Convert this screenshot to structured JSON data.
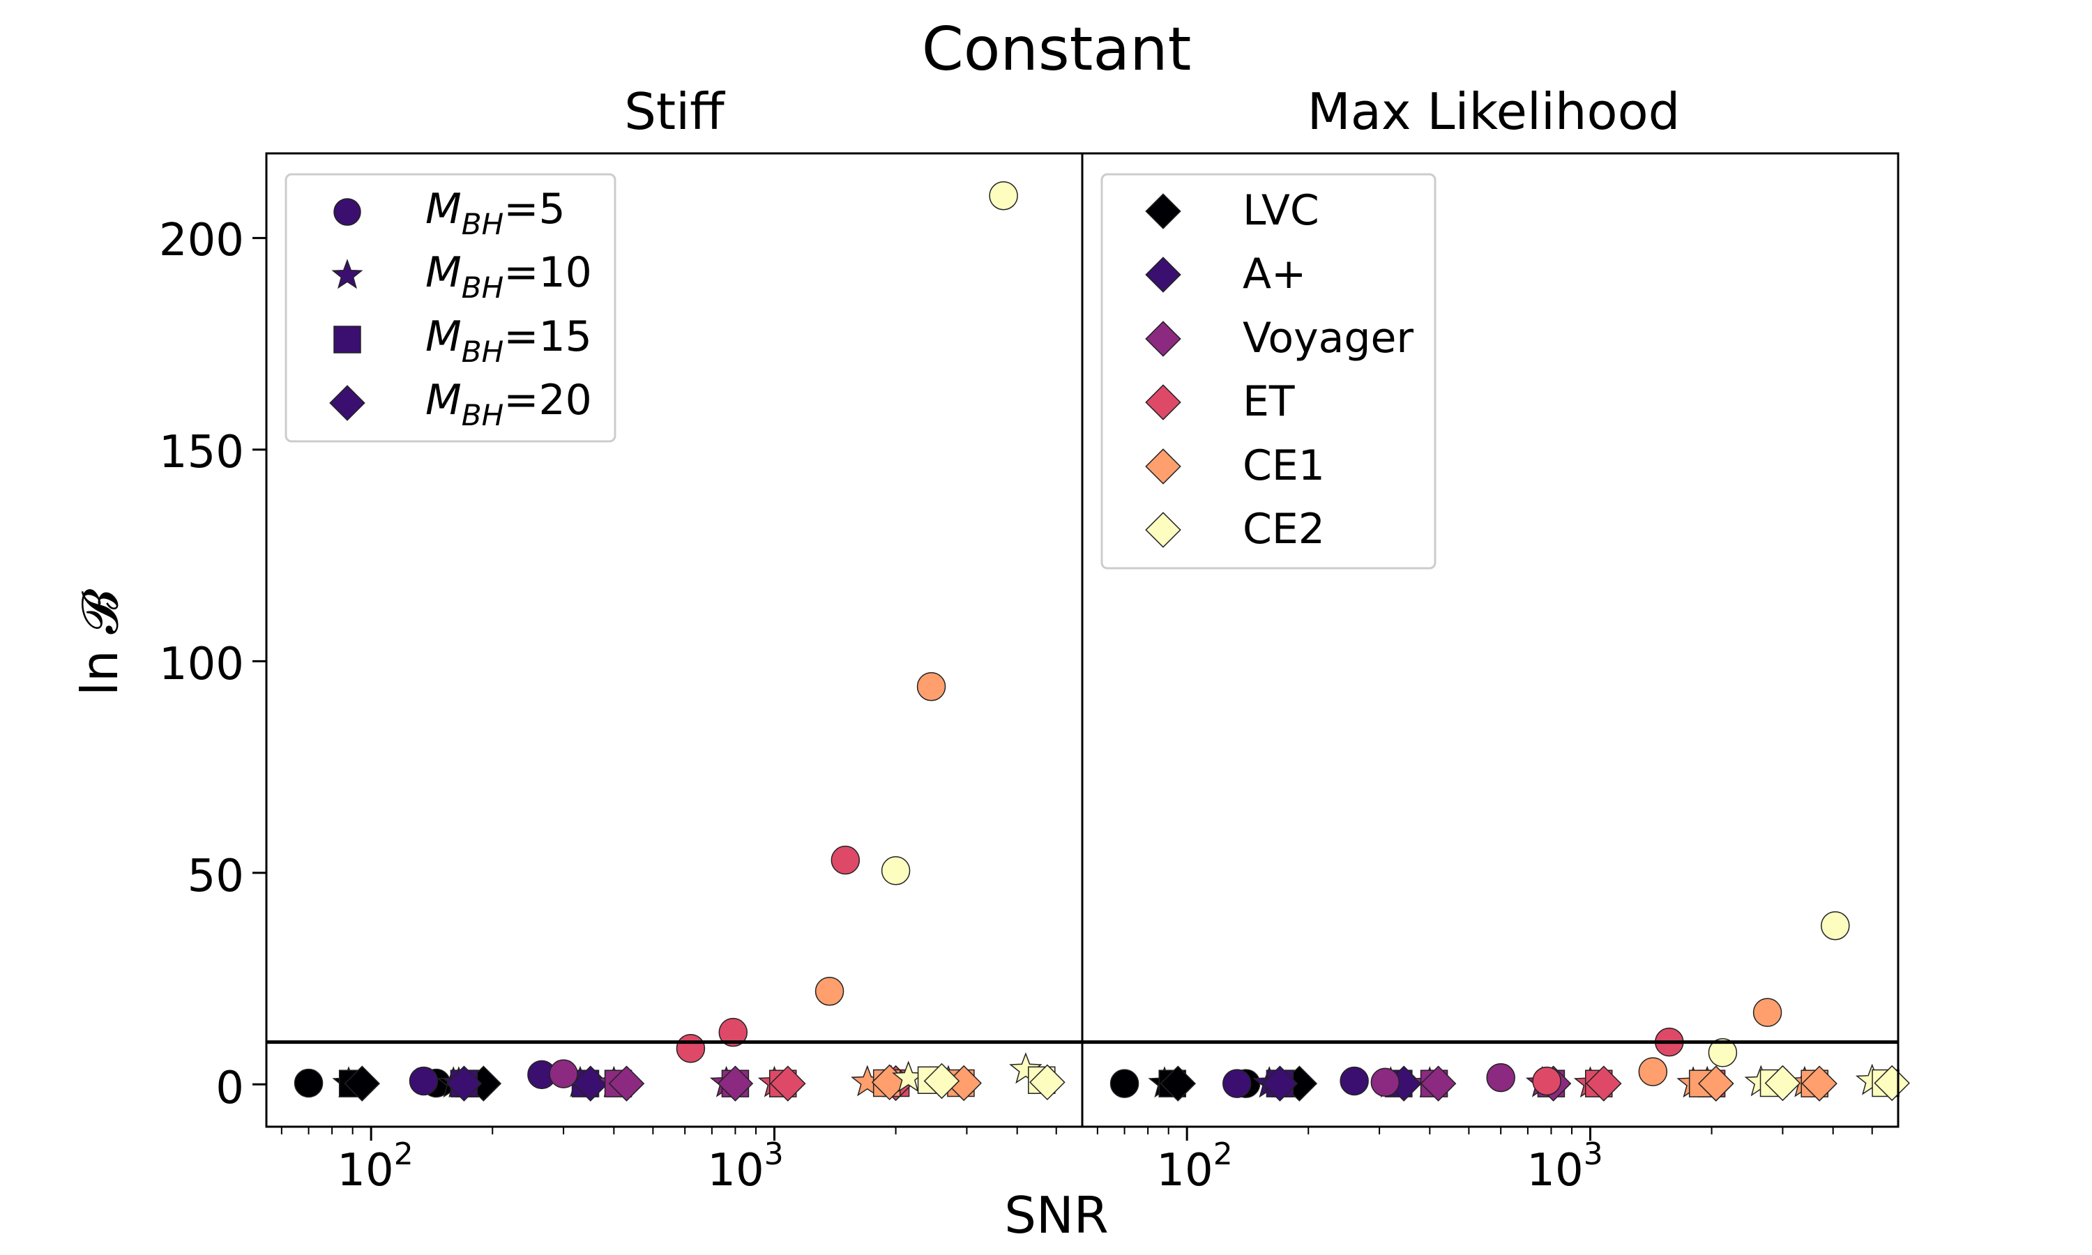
{
  "figure_title": "Constant",
  "xlabel": "SNR",
  "ylabel": "ln 𝓑",
  "yticks": [
    "0",
    "50",
    "100",
    "150",
    "200"
  ],
  "xticks": [
    {
      "base": "10",
      "exp": "2"
    },
    {
      "base": "10",
      "exp": "3"
    }
  ],
  "mass_legend": [
    {
      "label_prefix": "M",
      "label_sub": "BH",
      "label_value": "=5",
      "marker": "circle"
    },
    {
      "label_prefix": "M",
      "label_sub": "BH",
      "label_value": "=10",
      "marker": "star"
    },
    {
      "label_prefix": "M",
      "label_sub": "BH",
      "label_value": "=15",
      "marker": "square"
    },
    {
      "label_prefix": "M",
      "label_sub": "BH",
      "label_value": "=20",
      "marker": "diamond"
    }
  ],
  "detector_legend": [
    {
      "label": "LVC",
      "color": "#000004"
    },
    {
      "label": "A+",
      "color": "#3b0f70"
    },
    {
      "label": "Voyager",
      "color": "#8c2981"
    },
    {
      "label": "ET",
      "color": "#de4968"
    },
    {
      "label": "CE1",
      "color": "#fe9f6d"
    },
    {
      "label": "CE2",
      "color": "#fcfdbf"
    }
  ],
  "colors": {
    "LVC": "#000004",
    "A+": "#3b0f70",
    "Voyager": "#8c2981",
    "ET": "#de4968",
    "CE1": "#fe9f6d",
    "CE2": "#fcfdbf",
    "legend_marker": "#3b0f70"
  },
  "chart_data": [
    {
      "type": "scatter",
      "title": "Stiff",
      "xscale": "log",
      "xlim": [
        55,
        5800
      ],
      "ylim": [
        -10,
        220
      ],
      "threshold_line": 10,
      "legend": "upper-left",
      "series": [
        {
          "name": "LVC",
          "points": [
            {
              "x": 70,
              "y": 0.3,
              "m": "circle"
            },
            {
              "x": 88,
              "y": 0.2,
              "m": "star"
            },
            {
              "x": 90,
              "y": 0.2,
              "m": "square"
            },
            {
              "x": 95,
              "y": 0.2,
              "m": "diamond"
            },
            {
              "x": 145,
              "y": 0.3,
              "m": "circle"
            },
            {
              "x": 160,
              "y": 0.2,
              "m": "star"
            },
            {
              "x": 175,
              "y": 0.2,
              "m": "square"
            },
            {
              "x": 190,
              "y": 0.2,
              "m": "diamond"
            }
          ]
        },
        {
          "name": "A+",
          "points": [
            {
              "x": 135,
              "y": 0.8,
              "m": "circle"
            },
            {
              "x": 165,
              "y": 0.2,
              "m": "star"
            },
            {
              "x": 170,
              "y": 0.2,
              "m": "square"
            },
            {
              "x": 170,
              "y": 0.2,
              "m": "diamond"
            },
            {
              "x": 265,
              "y": 2.3,
              "m": "circle"
            },
            {
              "x": 330,
              "y": 0.3,
              "m": "star"
            },
            {
              "x": 340,
              "y": 0.2,
              "m": "square"
            },
            {
              "x": 350,
              "y": 0.2,
              "m": "diamond"
            }
          ]
        },
        {
          "name": "Voyager",
          "points": [
            {
              "x": 300,
              "y": 2.5,
              "m": "circle"
            },
            {
              "x": 400,
              "y": 0.3,
              "m": "star"
            },
            {
              "x": 410,
              "y": 0.2,
              "m": "square"
            },
            {
              "x": 430,
              "y": 0.2,
              "m": "diamond"
            },
            {
              "x": 760,
              "y": 0.3,
              "m": "star"
            },
            {
              "x": 800,
              "y": 0.2,
              "m": "square"
            },
            {
              "x": 800,
              "y": 0.2,
              "m": "diamond"
            }
          ]
        },
        {
          "name": "ET",
          "points": [
            {
              "x": 620,
              "y": 8.5,
              "m": "circle"
            },
            {
              "x": 790,
              "y": 12.3,
              "m": "circle"
            },
            {
              "x": 1000,
              "y": 0.3,
              "m": "star"
            },
            {
              "x": 1050,
              "y": 0.2,
              "m": "square"
            },
            {
              "x": 1080,
              "y": 0.2,
              "m": "diamond"
            },
            {
              "x": 1500,
              "y": 53,
              "m": "circle"
            },
            {
              "x": 1950,
              "y": 0.5,
              "m": "star"
            },
            {
              "x": 2000,
              "y": 0.3,
              "m": "square"
            },
            {
              "x": 2000,
              "y": 0.3,
              "m": "diamond"
            }
          ]
        },
        {
          "name": "CE1",
          "points": [
            {
              "x": 1370,
              "y": 22,
              "m": "circle"
            },
            {
              "x": 1700,
              "y": 0.5,
              "m": "star"
            },
            {
              "x": 1900,
              "y": 0.3,
              "m": "square"
            },
            {
              "x": 1930,
              "y": 0.5,
              "m": "diamond"
            },
            {
              "x": 2450,
              "y": 94,
              "m": "circle"
            },
            {
              "x": 2700,
              "y": 0.5,
              "m": "star"
            },
            {
              "x": 2900,
              "y": 0.3,
              "m": "square"
            },
            {
              "x": 2950,
              "y": 0.3,
              "m": "diamond"
            }
          ]
        },
        {
          "name": "CE2",
          "points": [
            {
              "x": 2000,
              "y": 50.5,
              "m": "circle"
            },
            {
              "x": 2150,
              "y": 1.5,
              "m": "star"
            },
            {
              "x": 2450,
              "y": 1.0,
              "m": "square"
            },
            {
              "x": 2600,
              "y": 0.8,
              "m": "diamond"
            },
            {
              "x": 3700,
              "y": 210,
              "m": "circle"
            },
            {
              "x": 4200,
              "y": 3.5,
              "m": "star"
            },
            {
              "x": 4600,
              "y": 1.0,
              "m": "square"
            },
            {
              "x": 4750,
              "y": 0.5,
              "m": "diamond"
            }
          ]
        }
      ]
    },
    {
      "type": "scatter",
      "title": "Max Likelihood",
      "xscale": "log",
      "xlim": [
        55,
        5800
      ],
      "ylim": [
        -10,
        220
      ],
      "threshold_line": 10,
      "legend": "upper-left",
      "series": [
        {
          "name": "LVC",
          "points": [
            {
              "x": 70,
              "y": 0.2,
              "m": "circle"
            },
            {
              "x": 88,
              "y": 0.2,
              "m": "star"
            },
            {
              "x": 92,
              "y": 0.2,
              "m": "square"
            },
            {
              "x": 95,
              "y": 0.2,
              "m": "diamond"
            },
            {
              "x": 140,
              "y": 0.2,
              "m": "circle"
            },
            {
              "x": 160,
              "y": 0.2,
              "m": "star"
            },
            {
              "x": 175,
              "y": 0.2,
              "m": "square"
            },
            {
              "x": 190,
              "y": 0.2,
              "m": "diamond"
            }
          ]
        },
        {
          "name": "A+",
          "points": [
            {
              "x": 133,
              "y": 0.2,
              "m": "circle"
            },
            {
              "x": 160,
              "y": 0.2,
              "m": "star"
            },
            {
              "x": 170,
              "y": 0.2,
              "m": "square"
            },
            {
              "x": 170,
              "y": 0.2,
              "m": "diamond"
            },
            {
              "x": 260,
              "y": 0.8,
              "m": "circle"
            },
            {
              "x": 320,
              "y": 0.2,
              "m": "star"
            },
            {
              "x": 335,
              "y": 0.2,
              "m": "square"
            },
            {
              "x": 345,
              "y": 0.2,
              "m": "diamond"
            }
          ]
        },
        {
          "name": "Voyager",
          "points": [
            {
              "x": 310,
              "y": 0.5,
              "m": "circle"
            },
            {
              "x": 400,
              "y": 0.2,
              "m": "star"
            },
            {
              "x": 410,
              "y": 0.2,
              "m": "square"
            },
            {
              "x": 420,
              "y": 0.2,
              "m": "diamond"
            },
            {
              "x": 600,
              "y": 1.6,
              "m": "circle"
            },
            {
              "x": 760,
              "y": 0.3,
              "m": "star"
            },
            {
              "x": 800,
              "y": 0.2,
              "m": "square"
            },
            {
              "x": 810,
              "y": 0.2,
              "m": "diamond"
            }
          ]
        },
        {
          "name": "ET",
          "points": [
            {
              "x": 780,
              "y": 0.8,
              "m": "circle"
            },
            {
              "x": 1000,
              "y": 0.2,
              "m": "star"
            },
            {
              "x": 1050,
              "y": 0.2,
              "m": "square"
            },
            {
              "x": 1080,
              "y": 0.2,
              "m": "diamond"
            },
            {
              "x": 1570,
              "y": 10,
              "m": "circle"
            },
            {
              "x": 1950,
              "y": 0.3,
              "m": "star"
            },
            {
              "x": 2000,
              "y": 0.2,
              "m": "square"
            },
            {
              "x": 2050,
              "y": 0.2,
              "m": "diamond"
            }
          ]
        },
        {
          "name": "CE1",
          "points": [
            {
              "x": 1430,
              "y": 3,
              "m": "circle"
            },
            {
              "x": 1800,
              "y": 0.2,
              "m": "star"
            },
            {
              "x": 1900,
              "y": 0.2,
              "m": "square"
            },
            {
              "x": 2050,
              "y": 0.2,
              "m": "diamond"
            },
            {
              "x": 2750,
              "y": 17,
              "m": "circle"
            },
            {
              "x": 3400,
              "y": 0.3,
              "m": "star"
            },
            {
              "x": 3600,
              "y": 0.2,
              "m": "square"
            },
            {
              "x": 3700,
              "y": 0.2,
              "m": "diamond"
            }
          ]
        },
        {
          "name": "CE2",
          "points": [
            {
              "x": 2130,
              "y": 7.5,
              "m": "circle"
            },
            {
              "x": 2650,
              "y": 0.5,
              "m": "star"
            },
            {
              "x": 2850,
              "y": 0.3,
              "m": "square"
            },
            {
              "x": 3000,
              "y": 0.3,
              "m": "diamond"
            },
            {
              "x": 4050,
              "y": 37.5,
              "m": "circle"
            },
            {
              "x": 5000,
              "y": 0.8,
              "m": "star"
            },
            {
              "x": 5400,
              "y": 0.3,
              "m": "square"
            },
            {
              "x": 5600,
              "y": 0.3,
              "m": "diamond"
            }
          ]
        }
      ]
    }
  ]
}
